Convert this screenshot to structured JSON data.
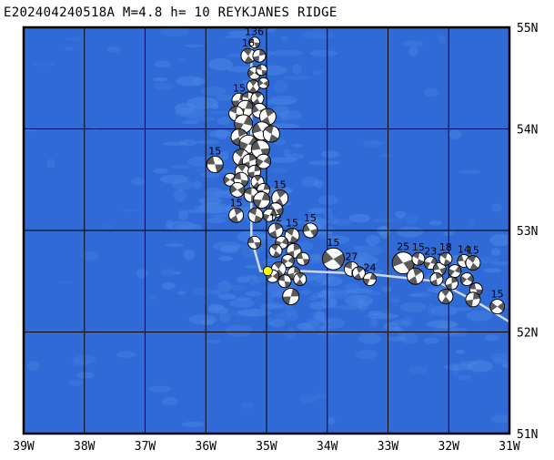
{
  "title": "E202404240518A M=4.8 h= 10 REYKJANES RIDGE",
  "colors": {
    "ocean": "#2f6ad6",
    "ocean_light": "#4a86e6",
    "grid": "#000000",
    "plate_boundary": "#d0d8e6",
    "event": "#ffff00",
    "mech_dark": "#5a5a5a"
  },
  "map": {
    "lon_min": -39,
    "lon_max": -31,
    "lat_min": 51,
    "lat_max": 55,
    "x_ticks": [
      "39W",
      "38W",
      "37W",
      "36W",
      "35W",
      "34W",
      "33W",
      "32W",
      "31W"
    ],
    "y_ticks": [
      "55N",
      "54N",
      "53N",
      "52N",
      "51N"
    ]
  },
  "event": {
    "lon": -34.98,
    "lat": 52.6
  },
  "plate_boundary": [
    [
      -35.25,
      54.9
    ],
    [
      -35.25,
      52.92
    ],
    [
      -35.1,
      52.6
    ],
    [
      -34.4,
      52.6
    ],
    [
      -33.3,
      52.57
    ],
    [
      -32.2,
      52.5
    ],
    [
      -31.55,
      52.3
    ],
    [
      -31.0,
      52.1
    ]
  ],
  "mechanisms": [
    {
      "lon": -35.2,
      "lat": 54.85,
      "r": 6,
      "label": "136"
    },
    {
      "lon": -35.3,
      "lat": 54.72,
      "r": 8,
      "label": "16"
    },
    {
      "lon": -35.12,
      "lat": 54.72,
      "r": 7,
      "label": ""
    },
    {
      "lon": -35.2,
      "lat": 54.55,
      "r": 7,
      "label": ""
    },
    {
      "lon": -35.08,
      "lat": 54.58,
      "r": 6,
      "label": ""
    },
    {
      "lon": -35.22,
      "lat": 54.42,
      "r": 7,
      "label": ""
    },
    {
      "lon": -35.45,
      "lat": 54.28,
      "r": 8,
      "label": "15"
    },
    {
      "lon": -35.05,
      "lat": 54.45,
      "r": 6,
      "label": ""
    },
    {
      "lon": -35.3,
      "lat": 54.3,
      "r": 7,
      "label": ""
    },
    {
      "lon": -35.15,
      "lat": 54.3,
      "r": 7,
      "label": ""
    },
    {
      "lon": -35.35,
      "lat": 54.2,
      "r": 9,
      "label": ""
    },
    {
      "lon": -35.12,
      "lat": 54.18,
      "r": 8,
      "label": ""
    },
    {
      "lon": -35.5,
      "lat": 54.15,
      "r": 8,
      "label": ""
    },
    {
      "lon": -34.98,
      "lat": 54.12,
      "r": 9,
      "label": ""
    },
    {
      "lon": -35.38,
      "lat": 54.05,
      "r": 10,
      "label": ""
    },
    {
      "lon": -35.08,
      "lat": 53.98,
      "r": 10,
      "label": ""
    },
    {
      "lon": -34.92,
      "lat": 53.95,
      "r": 9,
      "label": ""
    },
    {
      "lon": -35.45,
      "lat": 53.92,
      "r": 9,
      "label": ""
    },
    {
      "lon": -35.3,
      "lat": 53.85,
      "r": 10,
      "label": ""
    },
    {
      "lon": -35.1,
      "lat": 53.8,
      "r": 10,
      "label": ""
    },
    {
      "lon": -35.42,
      "lat": 53.72,
      "r": 9,
      "label": ""
    },
    {
      "lon": -35.28,
      "lat": 53.68,
      "r": 8,
      "label": ""
    },
    {
      "lon": -35.05,
      "lat": 53.68,
      "r": 8,
      "label": ""
    },
    {
      "lon": -35.85,
      "lat": 53.65,
      "r": 9,
      "label": "15"
    },
    {
      "lon": -35.4,
      "lat": 53.58,
      "r": 8,
      "label": ""
    },
    {
      "lon": -35.2,
      "lat": 53.58,
      "r": 7,
      "label": ""
    },
    {
      "lon": -35.6,
      "lat": 53.5,
      "r": 7,
      "label": ""
    },
    {
      "lon": -35.42,
      "lat": 53.5,
      "r": 8,
      "label": ""
    },
    {
      "lon": -35.15,
      "lat": 53.48,
      "r": 7,
      "label": ""
    },
    {
      "lon": -35.05,
      "lat": 53.4,
      "r": 7,
      "label": ""
    },
    {
      "lon": -35.48,
      "lat": 53.4,
      "r": 8,
      "label": ""
    },
    {
      "lon": -35.25,
      "lat": 53.35,
      "r": 8,
      "label": ""
    },
    {
      "lon": -34.78,
      "lat": 53.32,
      "r": 9,
      "label": "15"
    },
    {
      "lon": -35.08,
      "lat": 53.3,
      "r": 9,
      "label": ""
    },
    {
      "lon": -34.85,
      "lat": 53.2,
      "r": 8,
      "label": ""
    },
    {
      "lon": -35.18,
      "lat": 53.15,
      "r": 8,
      "label": ""
    },
    {
      "lon": -35.5,
      "lat": 53.15,
      "r": 8,
      "label": "15"
    },
    {
      "lon": -34.95,
      "lat": 53.15,
      "r": 7,
      "label": ""
    },
    {
      "lon": -34.28,
      "lat": 53.0,
      "r": 8,
      "label": "15"
    },
    {
      "lon": -34.58,
      "lat": 52.95,
      "r": 8,
      "label": "15"
    },
    {
      "lon": -34.85,
      "lat": 53.0,
      "r": 8,
      "label": "12"
    },
    {
      "lon": -34.75,
      "lat": 52.88,
      "r": 7,
      "label": ""
    },
    {
      "lon": -35.2,
      "lat": 52.88,
      "r": 7,
      "label": ""
    },
    {
      "lon": -34.85,
      "lat": 52.8,
      "r": 7,
      "label": ""
    },
    {
      "lon": -34.55,
      "lat": 52.8,
      "r": 8,
      "label": ""
    },
    {
      "lon": -34.65,
      "lat": 52.7,
      "r": 7,
      "label": ""
    },
    {
      "lon": -34.4,
      "lat": 52.72,
      "r": 7,
      "label": ""
    },
    {
      "lon": -34.8,
      "lat": 52.62,
      "r": 8,
      "label": ""
    },
    {
      "lon": -34.55,
      "lat": 52.58,
      "r": 7,
      "label": ""
    },
    {
      "lon": -34.9,
      "lat": 52.55,
      "r": 7,
      "label": ""
    },
    {
      "lon": -34.7,
      "lat": 52.5,
      "r": 7,
      "label": ""
    },
    {
      "lon": -34.45,
      "lat": 52.52,
      "r": 7,
      "label": ""
    },
    {
      "lon": -34.6,
      "lat": 52.35,
      "r": 9,
      "label": ""
    },
    {
      "lon": -33.9,
      "lat": 52.72,
      "r": 12,
      "label": "15"
    },
    {
      "lon": -33.6,
      "lat": 52.62,
      "r": 8,
      "label": "27"
    },
    {
      "lon": -33.48,
      "lat": 52.58,
      "r": 7,
      "label": ""
    },
    {
      "lon": -33.3,
      "lat": 52.52,
      "r": 7,
      "label": "24"
    },
    {
      "lon": -32.75,
      "lat": 52.68,
      "r": 12,
      "label": "25"
    },
    {
      "lon": -32.5,
      "lat": 52.72,
      "r": 7,
      "label": "15"
    },
    {
      "lon": -32.55,
      "lat": 52.55,
      "r": 9,
      "label": ""
    },
    {
      "lon": -32.3,
      "lat": 52.68,
      "r": 7,
      "label": "23"
    },
    {
      "lon": -32.15,
      "lat": 52.62,
      "r": 7,
      "label": "1"
    },
    {
      "lon": -32.05,
      "lat": 52.72,
      "r": 7,
      "label": "18"
    },
    {
      "lon": -32.2,
      "lat": 52.52,
      "r": 7,
      "label": ""
    },
    {
      "lon": -31.9,
      "lat": 52.6,
      "r": 7,
      "label": ""
    },
    {
      "lon": -31.75,
      "lat": 52.7,
      "r": 7,
      "label": "14"
    },
    {
      "lon": -31.6,
      "lat": 52.68,
      "r": 8,
      "label": "15"
    },
    {
      "lon": -31.95,
      "lat": 52.48,
      "r": 7,
      "label": ""
    },
    {
      "lon": -31.7,
      "lat": 52.52,
      "r": 7,
      "label": ""
    },
    {
      "lon": -31.55,
      "lat": 52.42,
      "r": 7,
      "label": ""
    },
    {
      "lon": -32.05,
      "lat": 52.35,
      "r": 8,
      "label": ""
    },
    {
      "lon": -31.6,
      "lat": 52.32,
      "r": 8,
      "label": ""
    },
    {
      "lon": -31.2,
      "lat": 52.25,
      "r": 8,
      "label": "15"
    }
  ]
}
